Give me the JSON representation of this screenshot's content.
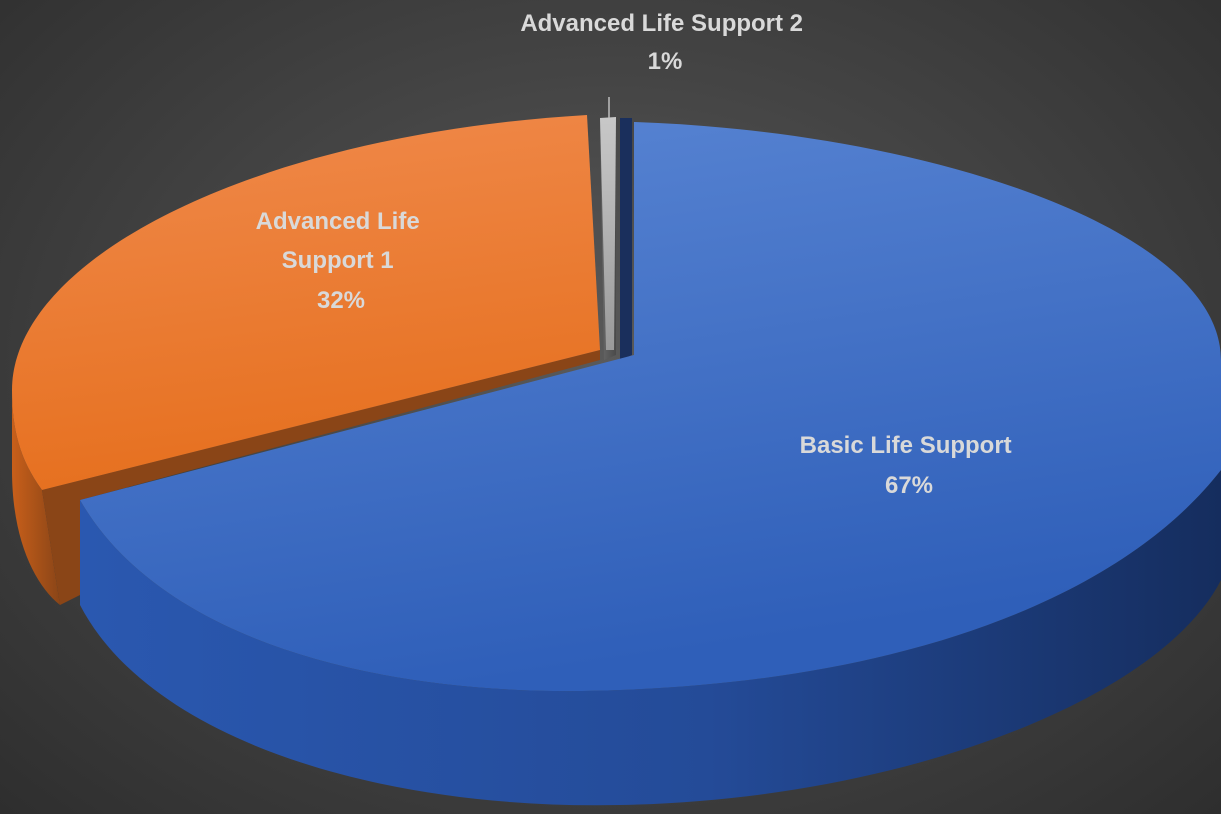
{
  "chart_data": {
    "type": "pie",
    "title": "",
    "categories": [
      "Basic Life Support",
      "Advanced Life Support 1",
      "Advanced Life Support 2"
    ],
    "values": [
      67,
      32,
      1
    ],
    "unit": "%",
    "data_labels": [
      {
        "lines": [
          "Basic Life Support",
          "67%"
        ]
      },
      {
        "lines": [
          "Advanced Life",
          "Support 1",
          "32%"
        ]
      },
      {
        "lines": [
          "Advanced Life Support 2",
          "1%"
        ]
      }
    ],
    "style": "3d-exploded",
    "legend": "none",
    "colors": [
      "#4472c4",
      "#ed7d31",
      "#a5a5a5"
    ],
    "side_colors": [
      "#1f3a72",
      "#8a4517",
      "#5c5c5c"
    ]
  }
}
